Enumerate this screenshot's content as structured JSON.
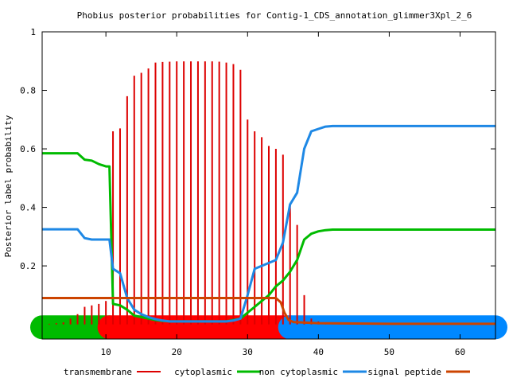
{
  "chart_data": {
    "type": "line",
    "title": "Phobius posterior probabilities for Contig-1_CDS_annotation_glimmer3Xpl_2_6",
    "ylabel": "Posterior label probability",
    "xlabel": "",
    "xlim": [
      1,
      65
    ],
    "ylim": [
      -0.05,
      1.0
    ],
    "grid": false,
    "legend_position": "bottom",
    "x_ticks": [
      10,
      20,
      30,
      40,
      50,
      60
    ],
    "x_tick_labels": [
      "10",
      "20",
      "30",
      "40",
      "50",
      "60"
    ],
    "y_ticks": [
      0.2,
      0.4,
      0.6,
      0.8,
      1.0
    ],
    "y_tick_labels": [
      "0.2",
      "0.4",
      "0.6",
      "0.8",
      "1"
    ],
    "topology_bar": {
      "y": -0.01,
      "segments": [
        {
          "label": "cytoplasmic",
          "start": 1,
          "end": 10.5,
          "color": "#00bb00"
        },
        {
          "label": "transmembrane",
          "start": 10.5,
          "end": 36,
          "color": "#ff0000"
        },
        {
          "label": "non cytoplasmic",
          "start": 36,
          "end": 65,
          "color": "#0088ff"
        }
      ]
    },
    "series": [
      {
        "name": "transmembrane",
        "style": "impulses",
        "color": "#dd0000",
        "x": [
          2,
          3,
          4,
          5,
          6,
          7,
          8,
          9,
          10,
          11,
          12,
          13,
          14,
          15,
          16,
          17,
          18,
          19,
          20,
          21,
          22,
          23,
          24,
          25,
          26,
          27,
          28,
          29,
          30,
          31,
          32,
          33,
          34,
          35,
          36,
          37,
          38,
          39,
          40,
          41
        ],
        "values": [
          0.002,
          0.004,
          0.007,
          0.02,
          0.035,
          0.06,
          0.065,
          0.07,
          0.08,
          0.66,
          0.67,
          0.78,
          0.85,
          0.86,
          0.875,
          0.895,
          0.897,
          0.898,
          0.899,
          0.899,
          0.899,
          0.899,
          0.899,
          0.899,
          0.898,
          0.895,
          0.89,
          0.87,
          0.7,
          0.66,
          0.64,
          0.61,
          0.6,
          0.58,
          0.41,
          0.34,
          0.1,
          0.02,
          0.01,
          0.005
        ]
      },
      {
        "name": "cytoplasmic",
        "color": "#00bb00",
        "x": [
          1,
          2,
          3,
          4,
          5,
          6,
          7,
          8,
          9,
          10,
          10.5,
          11,
          12,
          13,
          14,
          15,
          16,
          17,
          18,
          19,
          20,
          21,
          22,
          23,
          24,
          25,
          26,
          27,
          28,
          29,
          30,
          31,
          32,
          33,
          34,
          35,
          36,
          37,
          38,
          39,
          40,
          41,
          42,
          50,
          60,
          65
        ],
        "values": [
          0.585,
          0.585,
          0.585,
          0.585,
          0.585,
          0.585,
          0.563,
          0.56,
          0.548,
          0.54,
          0.54,
          0.07,
          0.065,
          0.05,
          0.03,
          0.025,
          0.02,
          0.015,
          0.012,
          0.01,
          0.01,
          0.01,
          0.01,
          0.01,
          0.01,
          0.01,
          0.01,
          0.01,
          0.015,
          0.02,
          0.04,
          0.06,
          0.08,
          0.1,
          0.13,
          0.15,
          0.18,
          0.22,
          0.29,
          0.31,
          0.318,
          0.322,
          0.324,
          0.324,
          0.324,
          0.324
        ]
      },
      {
        "name": "non cytoplasmic",
        "color": "#1e88e5",
        "x": [
          1,
          2,
          3,
          4,
          5,
          6,
          7,
          8,
          9,
          10,
          10.5,
          11,
          12,
          13,
          14,
          15,
          16,
          17,
          18,
          19,
          20,
          21,
          22,
          23,
          24,
          25,
          26,
          27,
          28,
          29,
          30,
          31,
          32,
          33,
          34,
          35,
          36,
          37,
          38,
          39,
          40,
          41,
          42,
          50,
          60,
          65
        ],
        "values": [
          0.325,
          0.325,
          0.325,
          0.325,
          0.325,
          0.325,
          0.295,
          0.29,
          0.29,
          0.29,
          0.29,
          0.19,
          0.175,
          0.09,
          0.05,
          0.035,
          0.025,
          0.018,
          0.013,
          0.01,
          0.01,
          0.01,
          0.01,
          0.01,
          0.01,
          0.01,
          0.01,
          0.01,
          0.013,
          0.02,
          0.1,
          0.19,
          0.2,
          0.21,
          0.22,
          0.28,
          0.41,
          0.45,
          0.6,
          0.66,
          0.668,
          0.676,
          0.678,
          0.678,
          0.678,
          0.678
        ]
      },
      {
        "name": "signal peptide",
        "color": "#cc4400",
        "x": [
          1,
          5,
          10,
          15,
          20,
          25,
          30,
          34,
          34.7,
          35.2,
          35.8,
          36.5,
          40,
          50,
          60,
          65
        ],
        "values": [
          0.09,
          0.09,
          0.09,
          0.09,
          0.09,
          0.09,
          0.09,
          0.09,
          0.075,
          0.04,
          0.015,
          0.008,
          0.004,
          0.002,
          0.002,
          0.002
        ]
      }
    ]
  }
}
